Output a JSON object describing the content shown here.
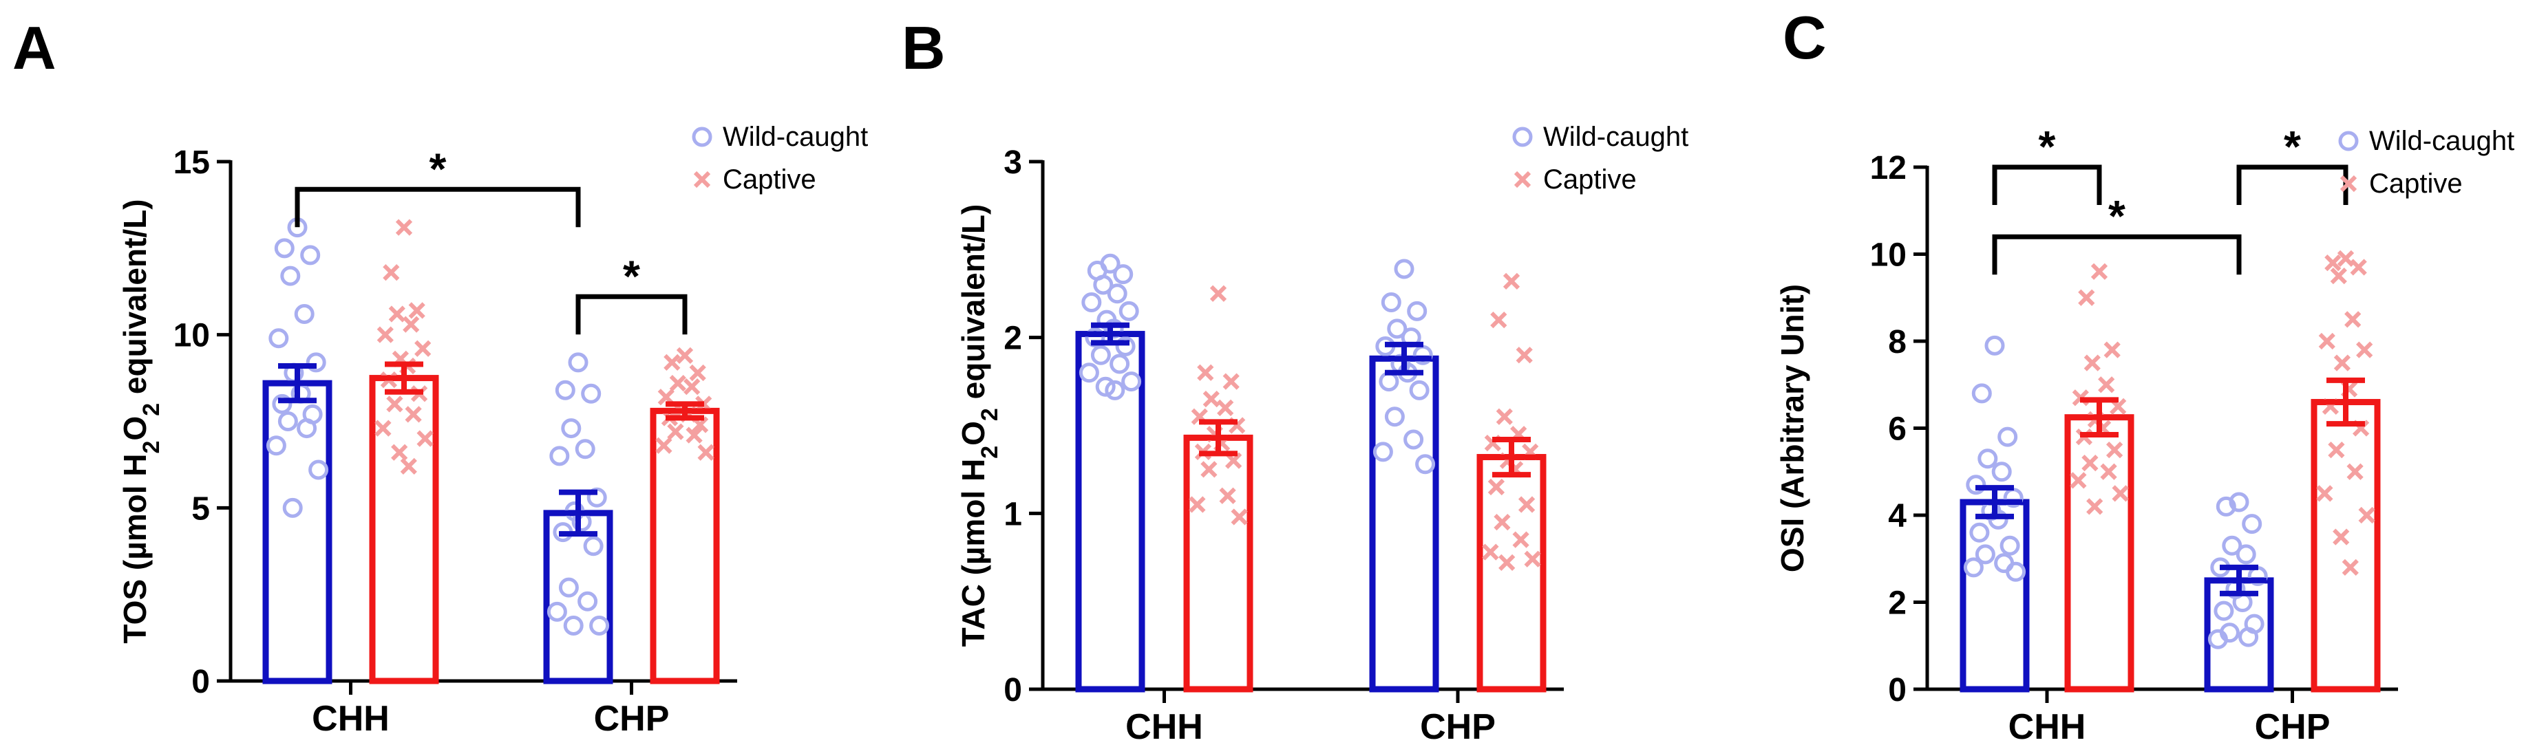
{
  "figure": {
    "legend_labels": [
      "Wild-caught",
      "Captive"
    ]
  },
  "colors": {
    "wild_bar": "#1010c0",
    "captive_bar": "#f01818",
    "wild_point": "#a8aef0",
    "captive_point": "#f4a0a0",
    "ink": "#000000"
  },
  "chart_data": [
    {
      "panel": "A",
      "type": "bar",
      "ylabel_parts": [
        "TOS (µmol H",
        "2",
        "O",
        "2",
        " equivalent/L)"
      ],
      "ylim": [
        0,
        15
      ],
      "yticks": [
        0,
        5,
        10,
        15
      ],
      "categories": [
        "CHH",
        "CHP"
      ],
      "series": [
        {
          "name": "Wild-caught",
          "values": [
            8.6,
            4.85
          ],
          "sem": [
            0.5,
            0.6
          ],
          "points": [
            [
              13.1,
              12.5,
              12.3,
              11.7,
              10.6,
              9.9,
              9.2,
              8.9,
              8.3,
              8.0,
              7.7,
              7.5,
              7.3,
              6.8,
              6.1,
              5.0
            ],
            [
              9.2,
              8.4,
              8.3,
              7.3,
              6.7,
              6.5,
              5.3,
              4.9,
              4.6,
              4.3,
              3.9,
              2.7,
              2.3,
              2.0,
              1.6,
              1.6
            ]
          ]
        },
        {
          "name": "Captive",
          "values": [
            8.75,
            7.8
          ],
          "sem": [
            0.4,
            0.2
          ],
          "points": [
            [
              13.1,
              11.8,
              10.7,
              10.6,
              10.3,
              10.0,
              9.6,
              9.3,
              9.1,
              8.7,
              8.3,
              8.0,
              7.7,
              7.3,
              7.0,
              6.6,
              6.2
            ],
            [
              9.4,
              9.2,
              8.9,
              8.6,
              8.5,
              8.2,
              8.0,
              7.8,
              7.7,
              7.6,
              7.4,
              7.2,
              7.1,
              6.8,
              6.6
            ]
          ]
        }
      ],
      "significance": [
        {
          "label": "*",
          "from": "CHH-Wild-caught",
          "to": "CHP-Wild-caught",
          "y": 14.2
        },
        {
          "label": "*",
          "from": "CHP-Wild-caught",
          "to": "CHP-Captive",
          "y": 11.1
        }
      ]
    },
    {
      "panel": "B",
      "type": "bar",
      "ylabel_parts": [
        "TAC (µmol H",
        "2",
        "O",
        "2",
        " equivalent/L)"
      ],
      "ylim": [
        0,
        3
      ],
      "yticks": [
        0,
        1,
        2,
        3
      ],
      "categories": [
        "CHH",
        "CHP"
      ],
      "series": [
        {
          "name": "Wild-caught",
          "values": [
            2.02,
            1.88
          ],
          "sem": [
            0.05,
            0.08
          ],
          "points": [
            [
              2.42,
              2.38,
              2.36,
              2.3,
              2.25,
              2.2,
              2.15,
              2.1,
              2.05,
              2.0,
              1.95,
              1.9,
              1.85,
              1.8,
              1.75,
              1.72,
              1.7
            ],
            [
              2.39,
              2.2,
              2.15,
              2.05,
              2.0,
              1.95,
              1.9,
              1.85,
              1.8,
              1.75,
              1.7,
              1.55,
              1.42,
              1.35,
              1.28
            ]
          ]
        },
        {
          "name": "Captive",
          "values": [
            1.43,
            1.32
          ],
          "sem": [
            0.09,
            0.1
          ],
          "points": [
            [
              2.25,
              1.8,
              1.75,
              1.65,
              1.6,
              1.55,
              1.5,
              1.45,
              1.4,
              1.35,
              1.3,
              1.25,
              1.1,
              1.05,
              0.98
            ],
            [
              2.32,
              2.1,
              1.9,
              1.55,
              1.45,
              1.4,
              1.35,
              1.3,
              1.25,
              1.15,
              1.05,
              0.95,
              0.85,
              0.78,
              0.74,
              0.72
            ]
          ]
        }
      ],
      "significance": []
    },
    {
      "panel": "C",
      "type": "bar",
      "ylabel_parts": [
        "OSI (Arbitrary Unit)"
      ],
      "ylim": [
        0,
        12
      ],
      "yticks": [
        0,
        2,
        4,
        6,
        8,
        10,
        12
      ],
      "categories": [
        "CHH",
        "CHP"
      ],
      "series": [
        {
          "name": "Wild-caught",
          "values": [
            4.3,
            2.5
          ],
          "sem": [
            0.33,
            0.3
          ],
          "points": [
            [
              7.9,
              6.8,
              5.8,
              5.3,
              5.0,
              4.7,
              4.4,
              4.1,
              3.9,
              3.6,
              3.3,
              3.1,
              2.9,
              2.8,
              2.7
            ],
            [
              4.3,
              4.2,
              3.8,
              3.3,
              3.1,
              2.8,
              2.6,
              2.3,
              2.0,
              1.8,
              1.5,
              1.3,
              1.2,
              1.15
            ]
          ]
        },
        {
          "name": "Captive",
          "values": [
            6.25,
            6.6
          ],
          "sem": [
            0.4,
            0.5
          ],
          "points": [
            [
              9.6,
              9.0,
              7.8,
              7.5,
              7.0,
              6.7,
              6.5,
              6.2,
              6.0,
              5.8,
              5.5,
              5.2,
              5.0,
              4.8,
              4.5,
              4.2
            ],
            [
              9.9,
              9.8,
              9.7,
              9.5,
              8.5,
              8.0,
              7.8,
              7.5,
              6.9,
              6.5,
              6.0,
              5.5,
              5.0,
              4.5,
              4.0,
              3.5,
              2.8
            ]
          ]
        }
      ],
      "significance": [
        {
          "label": "*",
          "from": "CHH-Wild-caught",
          "to": "CHH-Captive",
          "y": 12.0
        },
        {
          "label": "*",
          "from": "CHP-Wild-caught",
          "to": "CHP-Captive",
          "y": 12.0
        },
        {
          "label": "*",
          "from": "CHH-Wild-caught",
          "to": "CHP-Wild-caught",
          "y": 10.4
        }
      ]
    }
  ]
}
